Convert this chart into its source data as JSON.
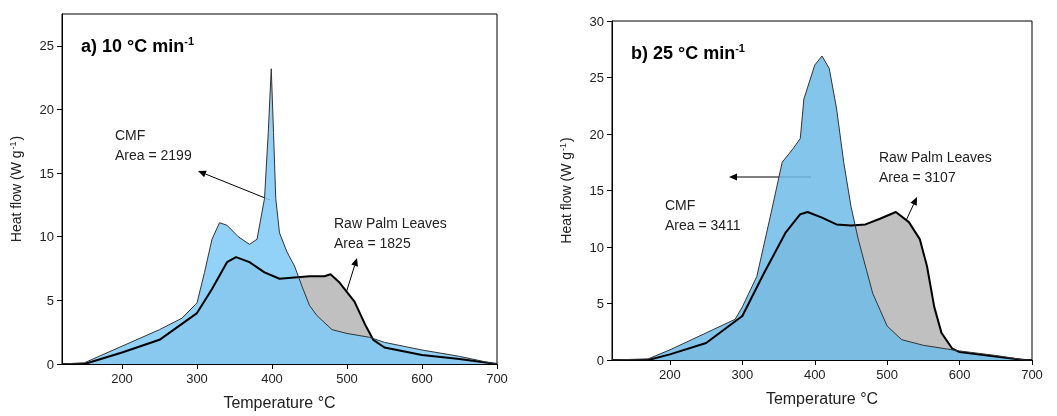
{
  "chart_data": [
    {
      "type": "area",
      "title": "a) 10 °C min$^{-1}$",
      "xlabel": "Temperature °C",
      "ylabel": "Heat flow (W g$^{-1}$)",
      "xlim": [
        120,
        700
      ],
      "ylim": [
        0,
        27.5
      ],
      "xticks": [
        200,
        300,
        400,
        500,
        600,
        700
      ],
      "yticks": [
        0,
        5,
        10,
        15,
        20,
        25
      ],
      "grid": false,
      "annotations": [
        "CMF\nArea = 2199",
        "Raw Palm Leaves\nArea = 1825"
      ],
      "series": [
        {
          "color": "#c0c0c0",
          "x": [
            120,
            150,
            200,
            250,
            300,
            320,
            340,
            352,
            370,
            390,
            410,
            430,
            450,
            470,
            478,
            490,
            510,
            525,
            535,
            550,
            600,
            650,
            700
          ],
          "values": [
            0,
            0,
            0.9,
            1.9,
            4.0,
            5.9,
            8.0,
            8.4,
            8.0,
            7.2,
            6.7,
            6.8,
            6.9,
            6.9,
            7.05,
            6.4,
            4.9,
            3.0,
            1.9,
            1.3,
            0.7,
            0.4,
            0
          ]
        },
        {
          "color": "#7fcaf7",
          "x": [
            120,
            150,
            200,
            250,
            280,
            300,
            310,
            320,
            330,
            340,
            355,
            370,
            380,
            390,
            395,
            399,
            402,
            405,
            410,
            420,
            430,
            440,
            450,
            460,
            480,
            500,
            530,
            550,
            600,
            650,
            690,
            700
          ],
          "values": [
            0,
            0.1,
            1.4,
            2.7,
            3.6,
            4.8,
            7.2,
            9.8,
            11.1,
            10.9,
            10.0,
            9.4,
            9.8,
            13.0,
            18.2,
            23.2,
            18.2,
            13.0,
            10.3,
            8.8,
            7.7,
            6.1,
            4.6,
            3.8,
            2.7,
            2.4,
            2.1,
            1.7,
            1.1,
            0.6,
            0.1,
            0
          ]
        }
      ]
    },
    {
      "type": "area",
      "title": "b) 25 °C min$^{-1}$",
      "xlabel": "Temperature °C",
      "ylabel": "Heat flow (W g$^{-1}$)",
      "xlim": [
        120,
        700
      ],
      "ylim": [
        0,
        30
      ],
      "xticks": [
        200,
        300,
        400,
        500,
        600,
        700
      ],
      "yticks": [
        0,
        5,
        10,
        15,
        20,
        25,
        30
      ],
      "grid": false,
      "annotations": [
        "CMF\nArea = 3411",
        "Raw Palm Leaves\nArea = 3107"
      ],
      "series": [
        {
          "color": "#c0c0c0",
          "x": [
            120,
            170,
            200,
            250,
            300,
            330,
            360,
            380,
            390,
            410,
            430,
            450,
            470,
            490,
            512,
            530,
            545,
            555,
            565,
            575,
            590,
            600,
            650,
            690,
            700
          ],
          "values": [
            0,
            0,
            0.5,
            1.5,
            3.9,
            7.7,
            11.3,
            12.9,
            13.1,
            12.6,
            12.0,
            11.9,
            12.0,
            12.5,
            13.1,
            12.2,
            10.7,
            8.3,
            4.7,
            2.4,
            1.0,
            0.7,
            0.3,
            0,
            0
          ]
        },
        {
          "color": "#6fbbe9",
          "x": [
            120,
            170,
            200,
            250,
            290,
            300,
            320,
            340,
            355,
            370,
            380,
            385,
            400,
            410,
            420,
            430,
            440,
            450,
            460,
            480,
            500,
            520,
            550,
            600,
            650,
            690,
            700
          ],
          "values": [
            0,
            0.1,
            0.9,
            2.4,
            3.6,
            4.7,
            7.4,
            13.1,
            17.5,
            18.7,
            19.6,
            23.1,
            26.1,
            26.9,
            25.8,
            22.3,
            17.5,
            13.6,
            10.7,
            5.9,
            3.0,
            1.8,
            1.3,
            0.8,
            0.4,
            0,
            0
          ]
        }
      ]
    }
  ]
}
